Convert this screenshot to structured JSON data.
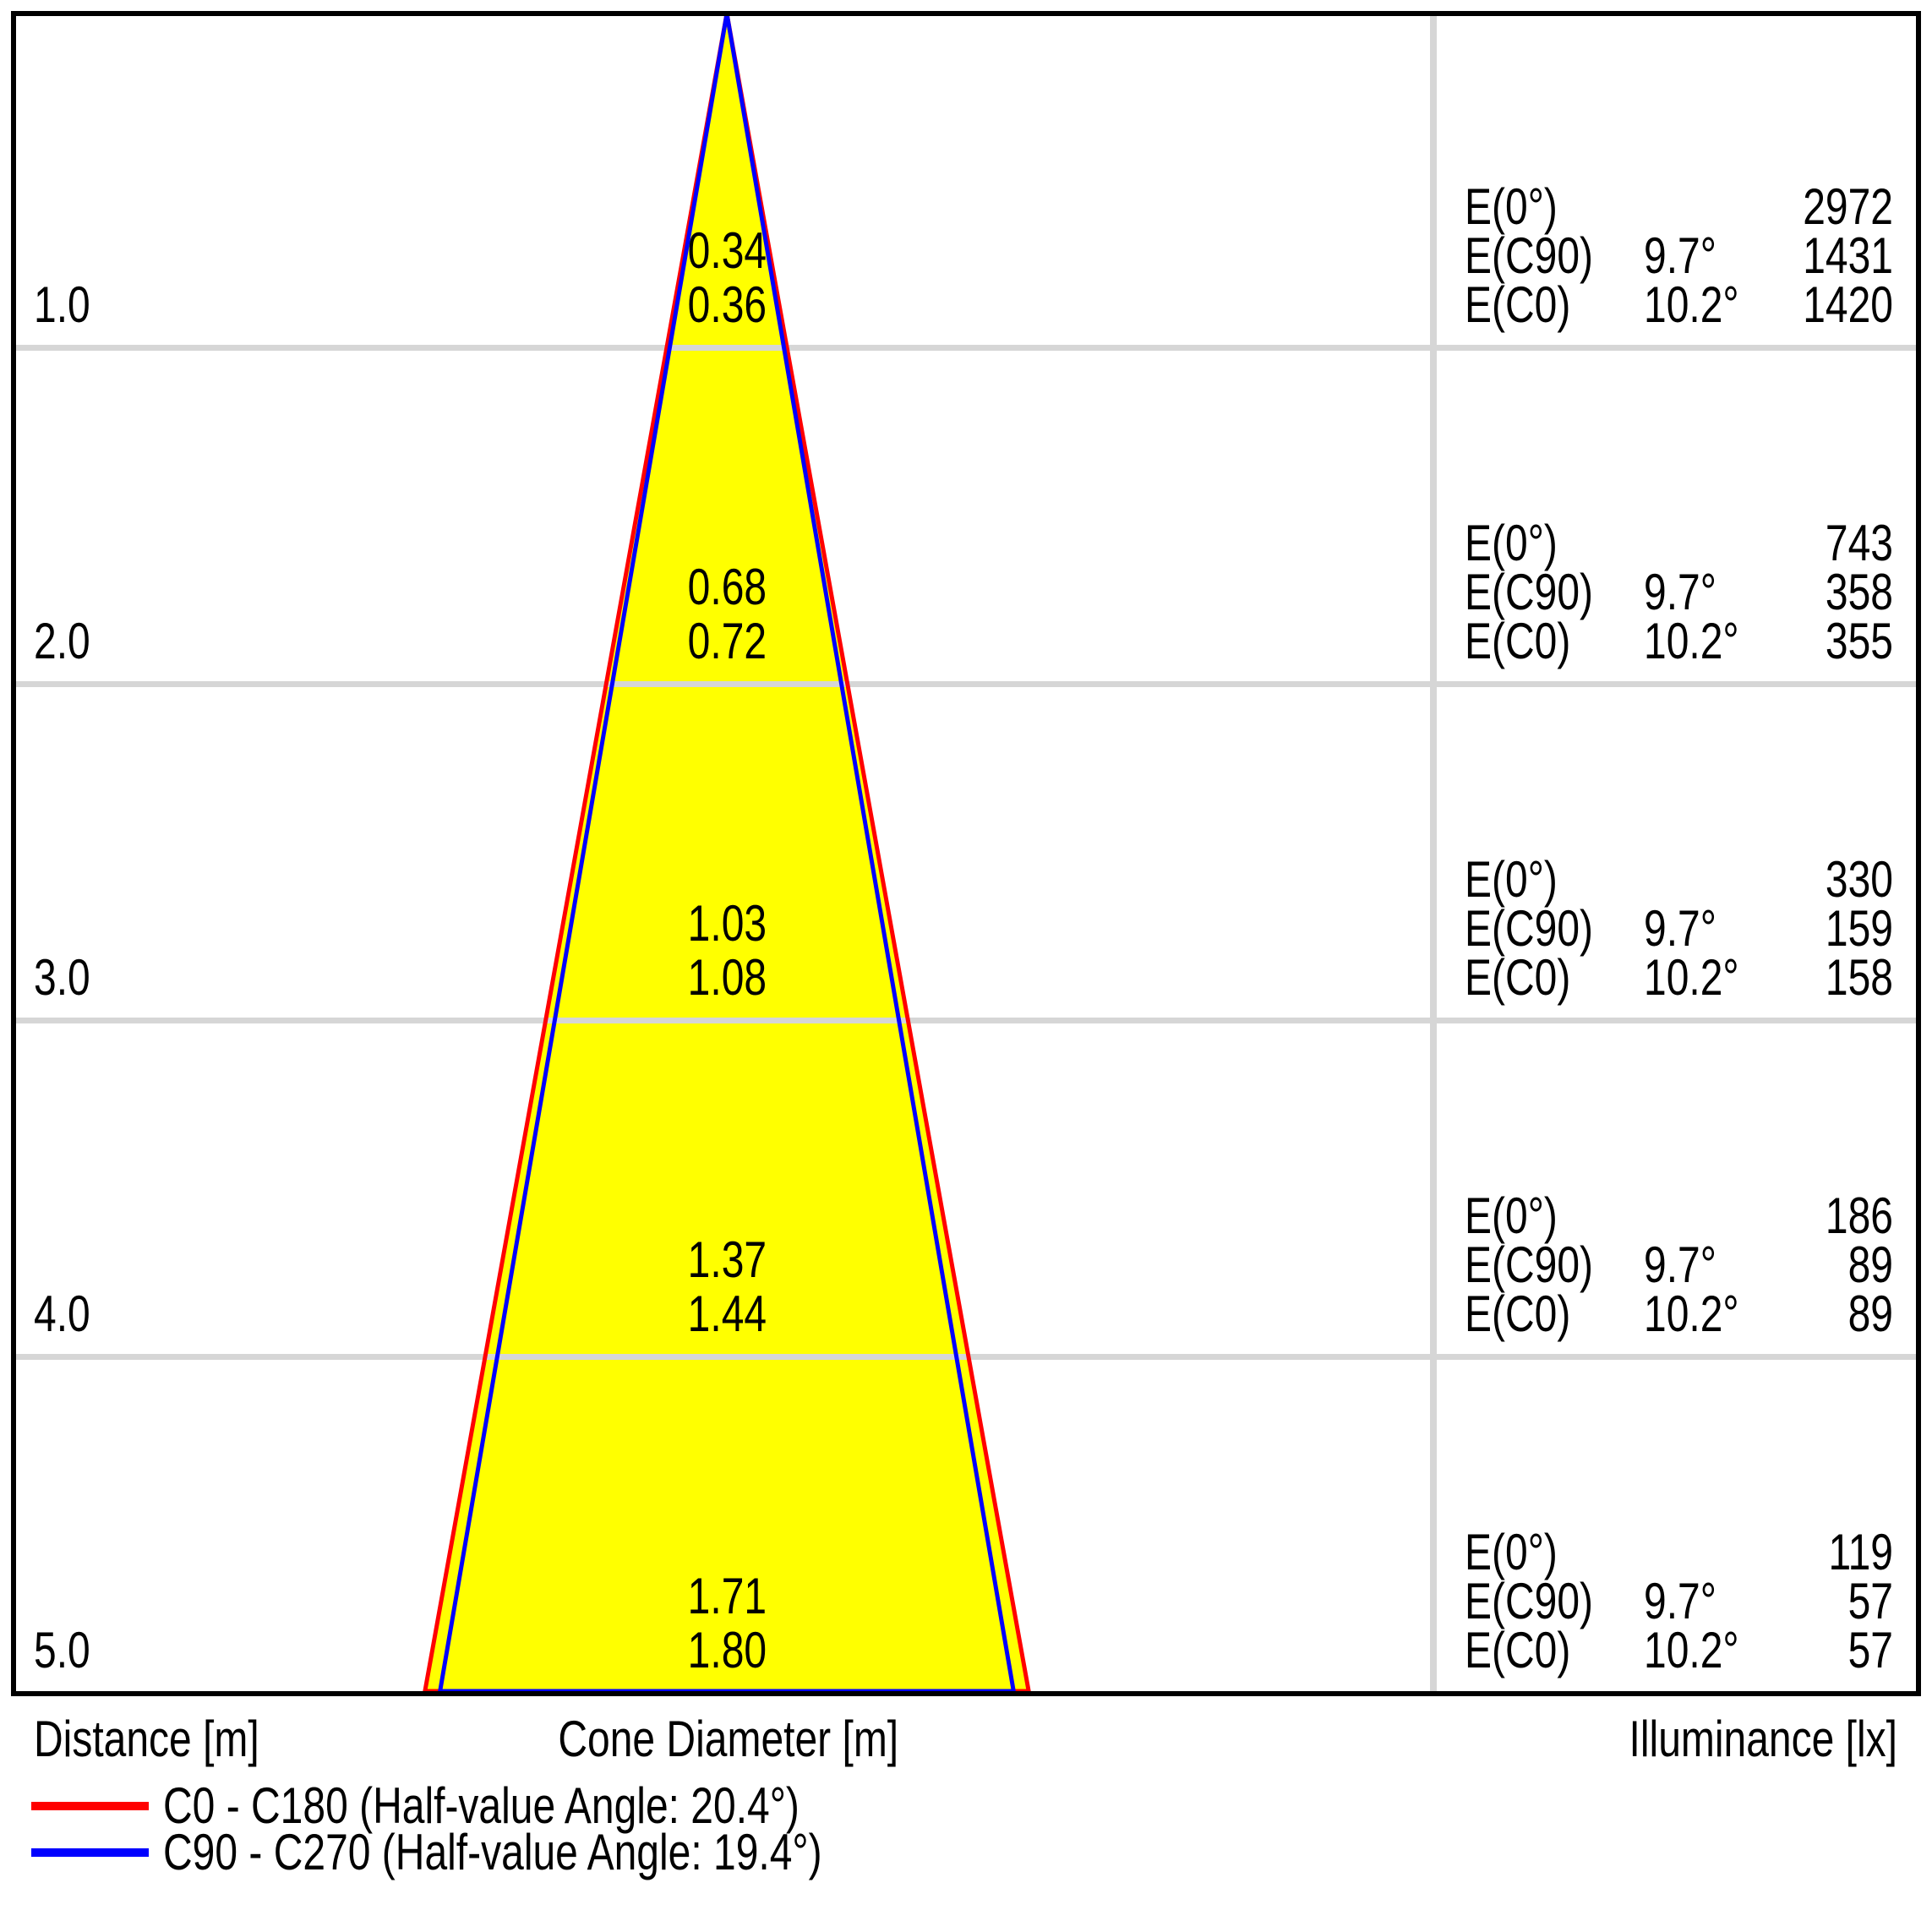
{
  "chart_data": {
    "type": "cone-diagram",
    "description": "Luminaire light cone diagram: beam diameter vs distance with illuminance values",
    "distance_axis_label": "Distance [m]",
    "cone_axis_label": "Cone Diameter [m]",
    "illuminance_axis_label": "Illuminance [lx]",
    "e_row_labels": {
      "e0": "E(0°)",
      "ec90": "E(C90)",
      "ec0": "E(C0)"
    },
    "max_distance_m": 5.0,
    "rows": [
      {
        "distance": "1.0",
        "cone_diameter_c90": "0.34",
        "cone_diameter_c0": "0.36",
        "e0_lx": "2972",
        "c90_angle": "9.7°",
        "ec90_lx": "1431",
        "c0_angle": "10.2°",
        "ec0_lx": "1420"
      },
      {
        "distance": "2.0",
        "cone_diameter_c90": "0.68",
        "cone_diameter_c0": "0.72",
        "e0_lx": "743",
        "c90_angle": "9.7°",
        "ec90_lx": "358",
        "c0_angle": "10.2°",
        "ec0_lx": "355"
      },
      {
        "distance": "3.0",
        "cone_diameter_c90": "1.03",
        "cone_diameter_c0": "1.08",
        "e0_lx": "330",
        "c90_angle": "9.7°",
        "ec90_lx": "159",
        "c0_angle": "10.2°",
        "ec0_lx": "158"
      },
      {
        "distance": "4.0",
        "cone_diameter_c90": "1.37",
        "cone_diameter_c0": "1.44",
        "e0_lx": "186",
        "c90_angle": "9.7°",
        "ec90_lx": "89",
        "c0_angle": "10.2°",
        "ec0_lx": "89"
      },
      {
        "distance": "5.0",
        "cone_diameter_c90": "1.71",
        "cone_diameter_c0": "1.80",
        "e0_lx": "119",
        "c90_angle": "9.7°",
        "ec90_lx": "57",
        "c0_angle": "10.2°",
        "ec0_lx": "57"
      }
    ],
    "legend": [
      {
        "label": "C0 - C180 (Half-value Angle: 20.4°)",
        "half_value_angle_deg": 20.4,
        "color": "#ff0000"
      },
      {
        "label": "C90 - C270 (Half-value Angle: 19.4°)",
        "half_value_angle_deg": 19.4,
        "color": "#0000ff"
      }
    ],
    "colors": {
      "cone_fill": "#ffff00",
      "c0_line": "#ff0000",
      "c90_line": "#0000ff",
      "grid": "#d6d6d6",
      "frame": "#000000"
    },
    "grid": true,
    "legend_position": "bottom-left"
  }
}
